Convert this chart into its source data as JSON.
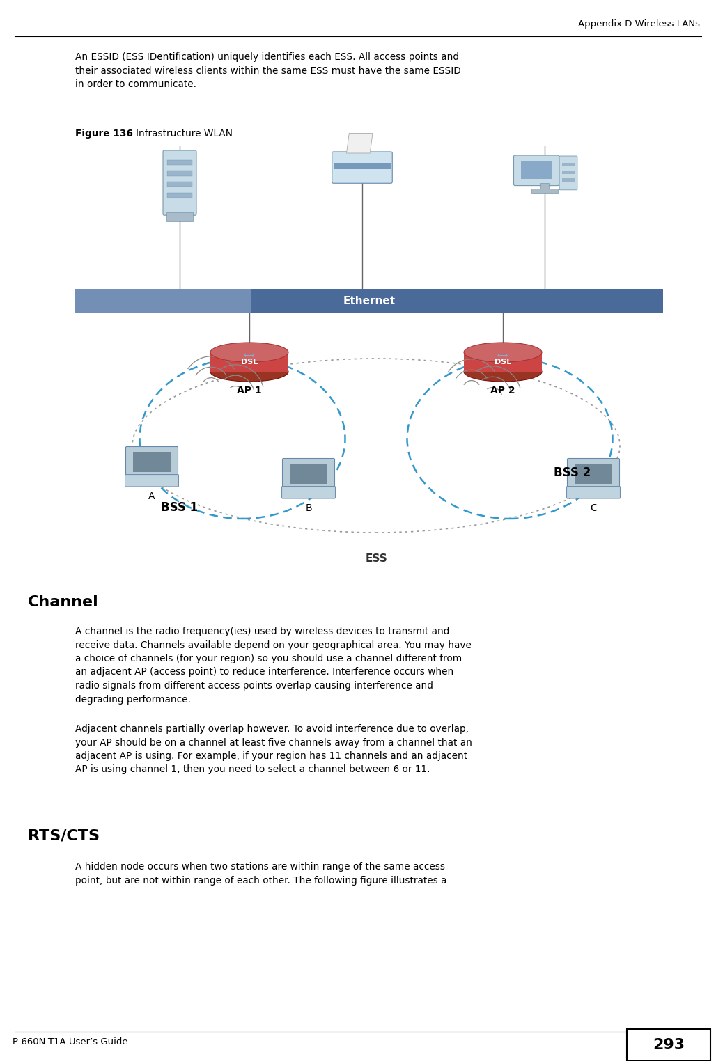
{
  "page_width": 10.28,
  "page_height": 15.24,
  "dpi": 100,
  "bg_color": "#ffffff",
  "header_text": "Appendix D Wireless LANs",
  "footer_text": "P-660N-T1A User’s Guide",
  "footer_page": "293",
  "para1_text": "An ESSID (ESS IDentification) uniquely identifies each ESS. All access points and\ntheir associated wireless clients within the same ESS must have the same ESSID\nin order to communicate.",
  "fig_label_bold": "Figure 136",
  "fig_label_normal": "Infrastructure WLAN",
  "channel_heading": "Channel",
  "channel_para1": "A channel is the radio frequency(ies) used by wireless devices to transmit and\nreceive data. Channels available depend on your geographical area. You may have\na choice of channels (for your region) so you should use a channel different from\nan adjacent AP (access point) to reduce interference. Interference occurs when\nradio signals from different access points overlap causing interference and\ndegrading performance.",
  "channel_para2": "Adjacent channels partially overlap however. To avoid interference due to overlap,\nyour AP should be on a channel at least five channels away from a channel that an\nadjacent AP is using. For example, if your region has 11 channels and an adjacent\nAP is using channel 1, then you need to select a channel between 6 or 11.",
  "rts_heading": "RTS/CTS",
  "rts_para": "A hidden node occurs when two stations are within range of the same access\npoint, but are not within range of each other. The following figure illustrates a",
  "text_color": "#000000",
  "header_color": "#000000",
  "ethernet_bar_color1": "#8fa8c8",
  "ethernet_bar_color2": "#4a6a9a",
  "ethernet_text_color": "#ffffff",
  "bss_circle_color": "#3399cc",
  "ess_circle_color": "#888888",
  "wire_color": "#666666",
  "ap_color_top": "#bb5555",
  "ap_color_mid": "#cc4444",
  "ap_color_bot": "#992222",
  "laptop_body": "#b0c8dc",
  "laptop_screen": "#6090b0",
  "laptop_base": "#c8dae8"
}
